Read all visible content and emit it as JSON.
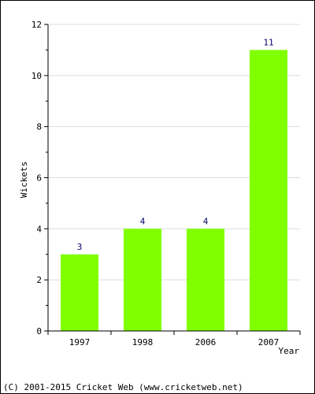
{
  "chart_data": {
    "type": "bar",
    "categories": [
      "1997",
      "1998",
      "2006",
      "2007"
    ],
    "values": [
      3,
      4,
      4,
      11
    ],
    "value_labels": [
      "3",
      "4",
      "4",
      "11"
    ],
    "xlabel": "Year",
    "ylabel": "Wickets",
    "ylim": [
      0,
      12
    ],
    "yticks": [
      "0",
      "2",
      "4",
      "6",
      "8",
      "10",
      "12"
    ],
    "ytick_values": [
      0,
      2,
      4,
      6,
      8,
      10,
      12
    ],
    "grid": true,
    "bar_color": "#80ff00",
    "grid_color": "#dddddd",
    "value_label_color": "#000066"
  },
  "footer": {
    "copyright": "(C) 2001-2015 Cricket Web (www.cricketweb.net)"
  }
}
